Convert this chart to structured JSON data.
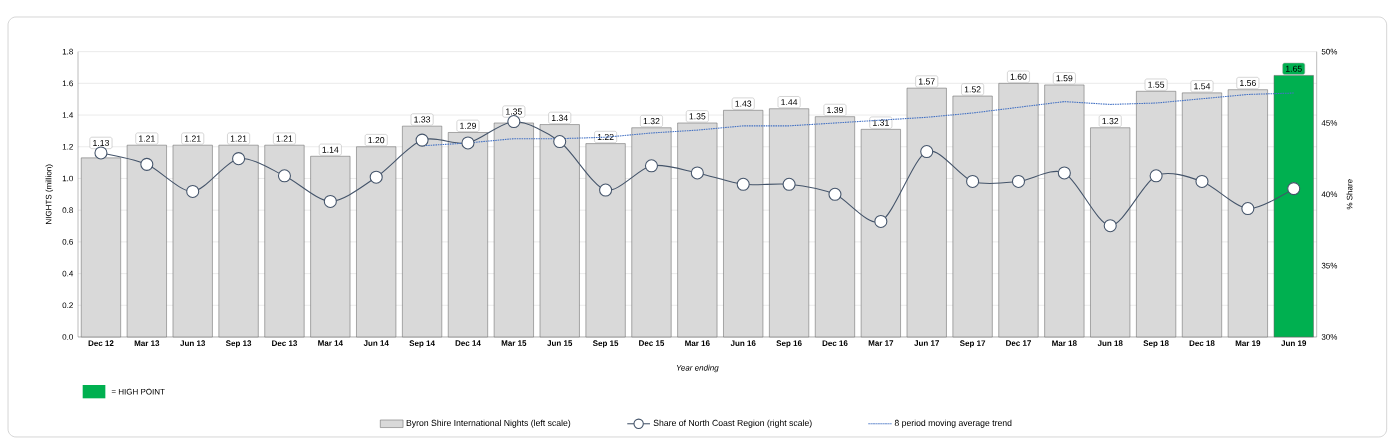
{
  "chart_data": {
    "type": "bar",
    "xlabel": "Year ending",
    "ylabel": "NIGHTS (million)",
    "y2label": "% Share",
    "categories": [
      "Dec 12",
      "Mar 13",
      "Jun 13",
      "Sep 13",
      "Dec 13",
      "Mar 14",
      "Jun 14",
      "Sep 14",
      "Dec 14",
      "Mar 15",
      "Jun 15",
      "Sep 15",
      "Dec 15",
      "Mar 16",
      "Jun 16",
      "Sep 16",
      "Dec 16",
      "Mar 17",
      "Jun 17",
      "Sep 17",
      "Dec 17",
      "Mar 18",
      "Jun 18",
      "Sep 18",
      "Dec 18",
      "Mar 19",
      "Jun 19"
    ],
    "series": [
      {
        "name": "Byron Shire International Nights (left scale)",
        "color": "#d9d9d9",
        "value_labels": [
          "1.13",
          "1.21",
          "1.21",
          "1.21",
          "1.21",
          "1.14",
          "1.20",
          "1.33",
          "1.29",
          "1.35",
          "1.34",
          "1.22",
          "1.32",
          "1.35",
          "1.43",
          "1.44",
          "1.39",
          "1.31",
          "1.57",
          "1.52",
          "1.60",
          "1.59",
          "1.32",
          "1.55",
          "1.54",
          "1.56",
          "1.65"
        ],
        "colors": [
          "#d9d9d9",
          "#d9d9d9",
          "#d9d9d9",
          "#d9d9d9",
          "#d9d9d9",
          "#d9d9d9",
          "#d9d9d9",
          "#d9d9d9",
          "#d9d9d9",
          "#d9d9d9",
          "#d9d9d9",
          "#d9d9d9",
          "#d9d9d9",
          "#d9d9d9",
          "#d9d9d9",
          "#d9d9d9",
          "#d9d9d9",
          "#d9d9d9",
          "#d9d9d9",
          "#d9d9d9",
          "#d9d9d9",
          "#d9d9d9",
          "#d9d9d9",
          "#d9d9d9",
          "#d9d9d9",
          "#d9d9d9",
          "#00b050"
        ],
        "values": [
          1.13,
          1.21,
          1.21,
          1.21,
          1.21,
          1.14,
          1.2,
          1.33,
          1.29,
          1.35,
          1.34,
          1.22,
          1.32,
          1.35,
          1.43,
          1.44,
          1.39,
          1.31,
          1.57,
          1.52,
          1.6,
          1.59,
          1.32,
          1.55,
          1.54,
          1.56,
          1.65
        ]
      },
      {
        "type": "line",
        "axis": "y2",
        "name": "Share of North Coast Region (right scale)",
        "color": "#44546a",
        "marker": "circle",
        "values": [
          42.9,
          42.1,
          40.2,
          42.5,
          41.3,
          39.5,
          41.2,
          43.8,
          43.6,
          45.1,
          43.7,
          40.3,
          42.0,
          41.5,
          40.7,
          40.7,
          40.0,
          38.1,
          43.0,
          40.9,
          40.9,
          41.5,
          37.8,
          41.3,
          40.9,
          39.0,
          40.4
        ]
      },
      {
        "type": "line",
        "axis": "y2",
        "name": "8 period moving average trend",
        "color": "#4472c4",
        "line_style": "dotted",
        "values": [
          null,
          null,
          null,
          null,
          null,
          null,
          null,
          43.4,
          43.6,
          43.9,
          43.9,
          44.0,
          44.3,
          44.5,
          44.8,
          44.8,
          45.0,
          null,
          45.4,
          45.7,
          46.1,
          46.5,
          46.3,
          46.4,
          46.7,
          47.0,
          47.1
        ]
      }
    ],
    "ylim": [
      0,
      1.8
    ],
    "yticks": [
      {
        "value": 0,
        "label": "0.0"
      },
      {
        "value": 0.2,
        "label": "0.2"
      },
      {
        "value": 0.4,
        "label": "0.4"
      },
      {
        "value": 0.6,
        "label": "0.6"
      },
      {
        "value": 0.8,
        "label": "0.8"
      },
      {
        "value": 1.0,
        "label": "1.0"
      },
      {
        "value": 1.2,
        "label": "1.2"
      },
      {
        "value": 1.4,
        "label": "1.4"
      },
      {
        "value": 1.6,
        "label": "1.6"
      },
      {
        "value": 1.8,
        "label": "1.8"
      }
    ],
    "y2lim": [
      30,
      50
    ],
    "y2ticks": [
      {
        "value": 30,
        "label": "30%"
      },
      {
        "value": 35,
        "label": "35%"
      },
      {
        "value": 40,
        "label": "40%"
      },
      {
        "value": 45,
        "label": "45%"
      },
      {
        "value": 50,
        "label": "50%"
      }
    ],
    "grid": "y",
    "legend": "bottom",
    "annotations": [
      "= HIGH POINT"
    ]
  }
}
